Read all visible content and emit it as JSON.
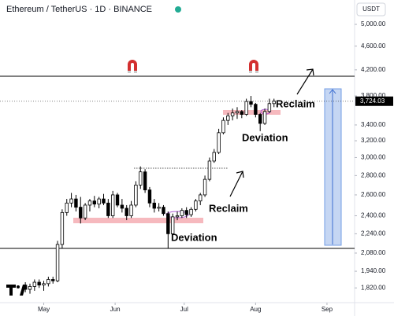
{
  "chart_data": {
    "type": "candlestick",
    "title": "Ethereum / TetherUS · 1D · BINANCE",
    "currency": "USDT",
    "log_scale": true,
    "grid": false,
    "up_color": "#ffffff",
    "down_color": "#000000",
    "wick_color": "#000000",
    "x": [
      -8,
      -6,
      -4,
      -2,
      0,
      2,
      4,
      6,
      8,
      10,
      12,
      14,
      16,
      18,
      20,
      22,
      24,
      26,
      28,
      30,
      32,
      34,
      36,
      38,
      40,
      42,
      44,
      46,
      48,
      50,
      52,
      54,
      56,
      58,
      60,
      62,
      64,
      66,
      68,
      70,
      72,
      74,
      76,
      78,
      80,
      82,
      84,
      86,
      88,
      90,
      92,
      94,
      96,
      98,
      100
    ],
    "open": [
      1840,
      1810,
      1830,
      1860,
      1840,
      1850,
      1880,
      1870,
      2150,
      2430,
      2520,
      2560,
      2480,
      2380,
      2500,
      2540,
      2510,
      2560,
      2520,
      2400,
      2600,
      2500,
      2470,
      2400,
      2500,
      2700,
      2840,
      2650,
      2520,
      2470,
      2480,
      2420,
      2240,
      2390,
      2400,
      2450,
      2410,
      2460,
      2540,
      2600,
      2760,
      2960,
      3060,
      3300,
      3460,
      3520,
      3560,
      3580,
      3540,
      3720,
      3680,
      3540,
      3420,
      3580,
      3690
    ],
    "high": [
      1860,
      1850,
      1880,
      1880,
      1870,
      1900,
      1900,
      2180,
      2460,
      2560,
      2620,
      2600,
      2580,
      2520,
      2560,
      2590,
      2580,
      2610,
      2560,
      2640,
      2620,
      2560,
      2500,
      2540,
      2740,
      2900,
      2870,
      2680,
      2560,
      2520,
      2500,
      2440,
      2420,
      2440,
      2470,
      2480,
      2480,
      2560,
      2620,
      2800,
      3000,
      3100,
      3350,
      3500,
      3560,
      3620,
      3640,
      3600,
      3760,
      3800,
      3700,
      3560,
      3620,
      3760,
      3760
    ],
    "low": [
      1790,
      1780,
      1800,
      1820,
      1800,
      1830,
      1850,
      1860,
      2120,
      2400,
      2480,
      2440,
      2330,
      2360,
      2440,
      2480,
      2470,
      2500,
      2380,
      2380,
      2480,
      2430,
      2360,
      2380,
      2480,
      2660,
      2620,
      2480,
      2430,
      2440,
      2400,
      2120,
      2220,
      2360,
      2380,
      2380,
      2390,
      2440,
      2500,
      2580,
      2740,
      2940,
      3040,
      3280,
      3400,
      3460,
      3480,
      3490,
      3520,
      3640,
      3500,
      3320,
      3400,
      3560,
      3640
    ],
    "close": [
      1810,
      1830,
      1860,
      1840,
      1850,
      1880,
      1870,
      2150,
      2430,
      2520,
      2560,
      2480,
      2380,
      2500,
      2540,
      2510,
      2560,
      2520,
      2400,
      2600,
      2500,
      2470,
      2400,
      2500,
      2700,
      2840,
      2650,
      2520,
      2470,
      2480,
      2420,
      2240,
      2390,
      2400,
      2450,
      2410,
      2460,
      2540,
      2600,
      2760,
      2960,
      3060,
      3300,
      3460,
      3520,
      3560,
      3580,
      3540,
      3720,
      3680,
      3540,
      3420,
      3580,
      3690,
      3724.03
    ],
    "xlim": [
      -19,
      135
    ],
    "xticks": [
      {
        "value": 0,
        "label": "May"
      },
      {
        "value": 31,
        "label": "Jun"
      },
      {
        "value": 61,
        "label": "Jul"
      },
      {
        "value": 92,
        "label": "Aug"
      },
      {
        "value": 123,
        "label": "Sep"
      }
    ],
    "ylim": [
      1720,
      5490
    ],
    "yticks": [
      {
        "value": 1820,
        "label": "1,820.00"
      },
      {
        "value": 1940,
        "label": "1,940.00"
      },
      {
        "value": 2080,
        "label": "2,080.00"
      },
      {
        "value": 2240,
        "label": "2,240.00"
      },
      {
        "value": 2400,
        "label": "2,400.00"
      },
      {
        "value": 2600,
        "label": "2,600.00"
      },
      {
        "value": 2800,
        "label": "2,800.00"
      },
      {
        "value": 3000,
        "label": "3,000.00"
      },
      {
        "value": 3200,
        "label": "3,200.00"
      },
      {
        "value": 3400,
        "label": "3,400.00"
      },
      {
        "value": 3800,
        "label": "3,800.00"
      },
      {
        "value": 4200,
        "label": "4,200.00"
      },
      {
        "value": 4600,
        "label": "4,600.00"
      },
      {
        "value": 5000,
        "label": "5,000.00"
      }
    ],
    "last_price": {
      "value": 3724.03,
      "label": "3,724.03"
    },
    "annotations": [
      "Reclaim",
      "Deviation",
      "Reclaim",
      "Deviation"
    ]
  }
}
